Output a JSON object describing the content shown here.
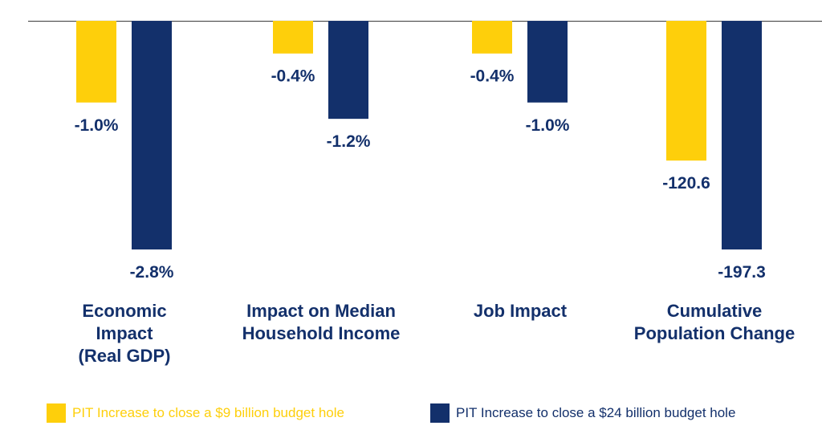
{
  "colors": {
    "yellow": "#fecf0b",
    "blue": "#13306b"
  },
  "chart_data": {
    "type": "bar",
    "title": "",
    "xlabel": "",
    "ylabel": "",
    "categories": [
      [
        "Economic",
        "Impact",
        "(Real GDP)"
      ],
      [
        "Impact on Median",
        "Household Income"
      ],
      [
        "Job Impact"
      ],
      [
        "Cumulative",
        "Population Change"
      ]
    ],
    "category_scale_max": [
      2.8,
      2.8,
      2.8,
      197.3
    ],
    "series": [
      {
        "name": "PIT Increase to close a $9 billion budget hole",
        "values": [
          -1.0,
          -0.4,
          -0.4,
          -120.6
        ],
        "labels": [
          "-1.0%",
          "-0.4%",
          "-0.4%",
          "-120.6"
        ]
      },
      {
        "name": "PIT Increase to close a $24 billion budget hole",
        "values": [
          -2.8,
          -1.2,
          -1.0,
          -197.3
        ],
        "labels": [
          "-2.8%",
          "-1.2%",
          "-1.0%",
          "-197.3"
        ]
      }
    ]
  },
  "legend": {
    "yellow_label": "PIT Increase to close a $9 billion budget hole",
    "blue_label": "PIT Increase to close a $24 billion budget hole"
  }
}
